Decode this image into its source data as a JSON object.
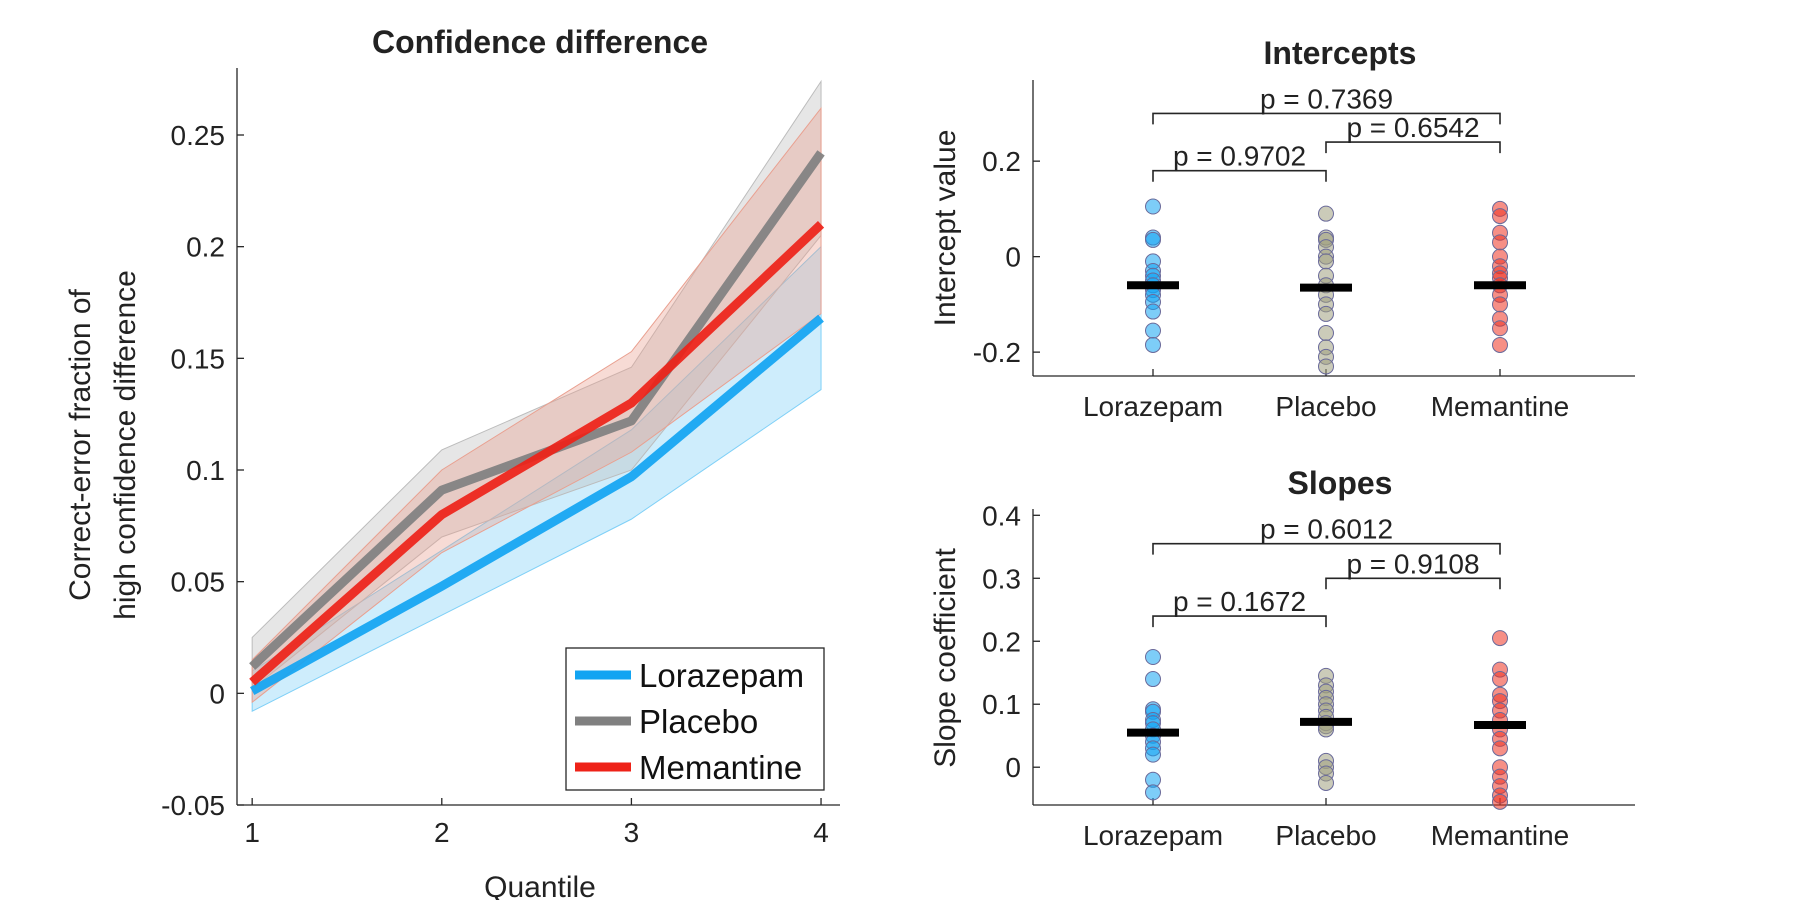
{
  "chart_data": [
    {
      "type": "line",
      "title": "Confidence difference",
      "xlabel": "Quantile",
      "ylabel": [
        "Correct-error fraction of",
        "high confidence difference"
      ],
      "x": [
        1,
        2,
        3,
        4
      ],
      "xlim": [
        0.92,
        4.1
      ],
      "ylim": [
        -0.05,
        0.28
      ],
      "xticks": [
        1,
        2,
        3,
        4
      ],
      "yticks": [
        -0.05,
        0,
        0.05,
        0.1,
        0.15,
        0.2,
        0.25
      ],
      "ytick_labels": [
        "-0.05",
        "0",
        "0.05",
        "0.1",
        "0.15",
        "0.2",
        "0.25"
      ],
      "legend_position": "bottom-right",
      "series": [
        {
          "name": "Lorazepam",
          "color": "#12a4f2",
          "band_color": "#7fd0f7",
          "values": [
            0.001,
            0.048,
            0.097,
            0.168
          ],
          "lower": [
            -0.008,
            0.035,
            0.078,
            0.136
          ],
          "upper": [
            0.01,
            0.064,
            0.118,
            0.2
          ]
        },
        {
          "name": "Placebo",
          "color": "#808080",
          "band_color": "#bcbcbc",
          "values": [
            0.012,
            0.091,
            0.122,
            0.242
          ],
          "lower": [
            0.002,
            0.07,
            0.1,
            0.205
          ],
          "upper": [
            0.025,
            0.109,
            0.146,
            0.274
          ]
        },
        {
          "name": "Memantine",
          "color": "#ee2218",
          "band_color": "#e9a090",
          "values": [
            0.005,
            0.08,
            0.13,
            0.21
          ],
          "lower": [
            -0.004,
            0.063,
            0.108,
            0.17
          ],
          "upper": [
            0.015,
            0.1,
            0.153,
            0.262
          ]
        }
      ]
    },
    {
      "type": "scatter",
      "title": "Intercepts",
      "ylabel": "Intercept value",
      "categories": [
        "Lorazepam",
        "Placebo",
        "Memantine"
      ],
      "ylim": [
        -0.25,
        0.37
      ],
      "yticks": [
        -0.2,
        0,
        0.2
      ],
      "ytick_labels": [
        "-0.2",
        "0",
        "0.2"
      ],
      "means": [
        -0.06,
        -0.065,
        -0.06
      ],
      "point_colors": [
        "#12a4f2",
        "#a0a080",
        "#ee3322"
      ],
      "points": [
        [
          0.105,
          0.04,
          0.035,
          -0.01,
          -0.03,
          -0.04,
          -0.05,
          -0.06,
          -0.07,
          -0.08,
          -0.095,
          -0.115,
          -0.155,
          -0.185
        ],
        [
          0.09,
          0.04,
          0.035,
          0.02,
          0.0,
          -0.01,
          -0.04,
          -0.06,
          -0.08,
          -0.1,
          -0.12,
          -0.16,
          -0.19,
          -0.21,
          -0.23
        ],
        [
          0.1,
          0.085,
          0.05,
          0.03,
          0.0,
          -0.02,
          -0.035,
          -0.045,
          -0.06,
          -0.08,
          -0.1,
          -0.13,
          -0.15,
          -0.185
        ]
      ],
      "comparisons": [
        {
          "from": 0,
          "to": 2,
          "level": 0.3,
          "label": "p = 0.7369"
        },
        {
          "from": 1,
          "to": 2,
          "level": 0.24,
          "label": "p = 0.6542"
        },
        {
          "from": 0,
          "to": 1,
          "level": 0.18,
          "label": "p = 0.9702"
        }
      ]
    },
    {
      "type": "scatter",
      "title": "Slopes",
      "ylabel": "Slope coefficient",
      "categories": [
        "Lorazepam",
        "Placebo",
        "Memantine"
      ],
      "ylim": [
        -0.06,
        0.41
      ],
      "yticks": [
        0,
        0.1,
        0.2,
        0.3,
        0.4
      ],
      "ytick_labels": [
        "0",
        "0.1",
        "0.2",
        "0.3",
        "0.4"
      ],
      "means": [
        0.055,
        0.072,
        0.067
      ],
      "point_colors": [
        "#12a4f2",
        "#a0a080",
        "#ee3322"
      ],
      "points": [
        [
          0.175,
          0.14,
          0.092,
          0.088,
          0.075,
          0.07,
          0.06,
          0.05,
          0.04,
          0.03,
          0.02,
          -0.02,
          -0.04
        ],
        [
          0.145,
          0.13,
          0.12,
          0.11,
          0.1,
          0.09,
          0.08,
          0.07,
          0.065,
          0.06,
          0.01,
          0.0,
          -0.01,
          -0.025
        ],
        [
          0.205,
          0.155,
          0.14,
          0.115,
          0.105,
          0.09,
          0.075,
          0.06,
          0.045,
          0.03,
          0.0,
          -0.015,
          -0.03,
          -0.045,
          -0.055
        ]
      ],
      "comparisons": [
        {
          "from": 0,
          "to": 2,
          "level": 0.355,
          "label": "p = 0.6012"
        },
        {
          "from": 1,
          "to": 2,
          "level": 0.3,
          "label": "p = 0.9108"
        },
        {
          "from": 0,
          "to": 1,
          "level": 0.24,
          "label": "p = 0.1672"
        }
      ]
    }
  ]
}
